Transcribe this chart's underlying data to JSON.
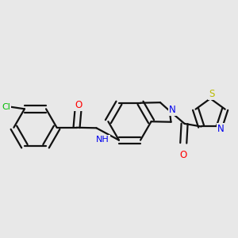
{
  "background_color": "#e8e8e8",
  "atom_colors": {
    "Cl": "#00bb00",
    "O": "#ff0000",
    "N": "#0000ee",
    "S": "#bbbb00",
    "C": "#000000"
  },
  "bond_color": "#111111",
  "bond_width": 1.6,
  "font_size": 8.5,
  "figsize": [
    3.0,
    3.0
  ],
  "dpi": 100
}
